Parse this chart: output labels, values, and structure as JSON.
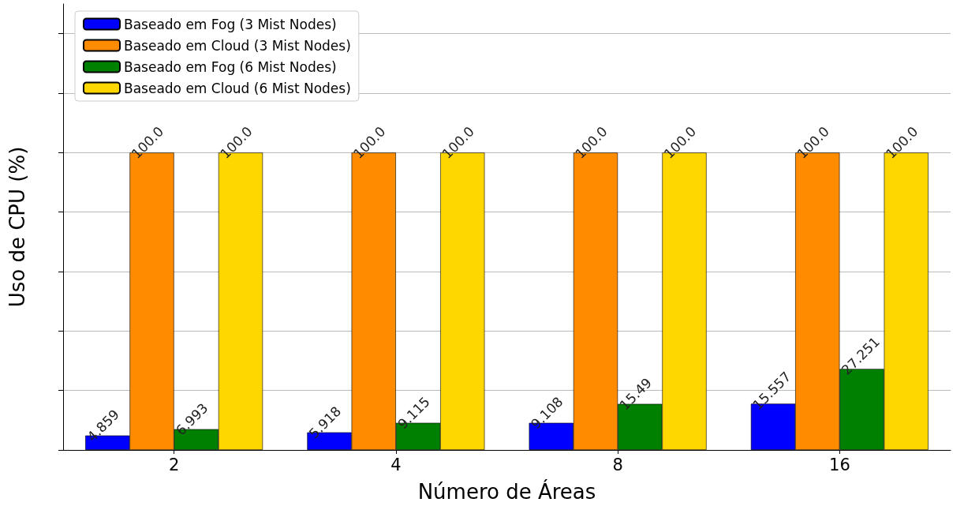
{
  "chart_data": {
    "type": "bar",
    "xlabel": "Número de Áreas",
    "ylabel": "Uso de CPU (%)",
    "categories": [
      "2",
      "4",
      "8",
      "16"
    ],
    "series": [
      {
        "name": "Baseado em Fog (3 Mist Nodes)",
        "color": "#0000ff",
        "values": [
          4.859,
          5.918,
          9.108,
          15.557
        ],
        "value_labels": [
          "4.859",
          "5.918",
          "9.108",
          "15.557"
        ]
      },
      {
        "name": "Baseado em Cloud (3 Mist Nodes)",
        "color": "#ff8c00",
        "values": [
          100,
          100,
          100,
          100
        ],
        "value_labels": [
          "100.0",
          "100.0",
          "100.0",
          "100.0"
        ]
      },
      {
        "name": "Baseado em Fog (6 Mist Nodes)",
        "color": "#008000",
        "values": [
          6.993,
          9.115,
          15.49,
          27.251
        ],
        "value_labels": [
          "6.993",
          "9.115",
          "15.49",
          "27.251"
        ]
      },
      {
        "name": "Baseado em Cloud (6 Mist Nodes)",
        "color": "#ffd700",
        "values": [
          100,
          100,
          100,
          100
        ],
        "value_labels": [
          "100.0",
          "100.0",
          "100.0",
          "100.0"
        ]
      }
    ],
    "ylim": [
      0,
      150
    ],
    "yticks": [
      {
        "value": 0,
        "label": null
      },
      {
        "value": 20,
        "label": null
      },
      {
        "value": 40,
        "label": null
      },
      {
        "value": 60,
        "label": null
      },
      {
        "value": 80,
        "label": null
      },
      {
        "value": 100,
        "label": null
      },
      {
        "value": 120,
        "label": null
      },
      {
        "value": 140,
        "label": null
      }
    ],
    "tick_labels": "x",
    "grid": "y",
    "legend": "top left"
  }
}
